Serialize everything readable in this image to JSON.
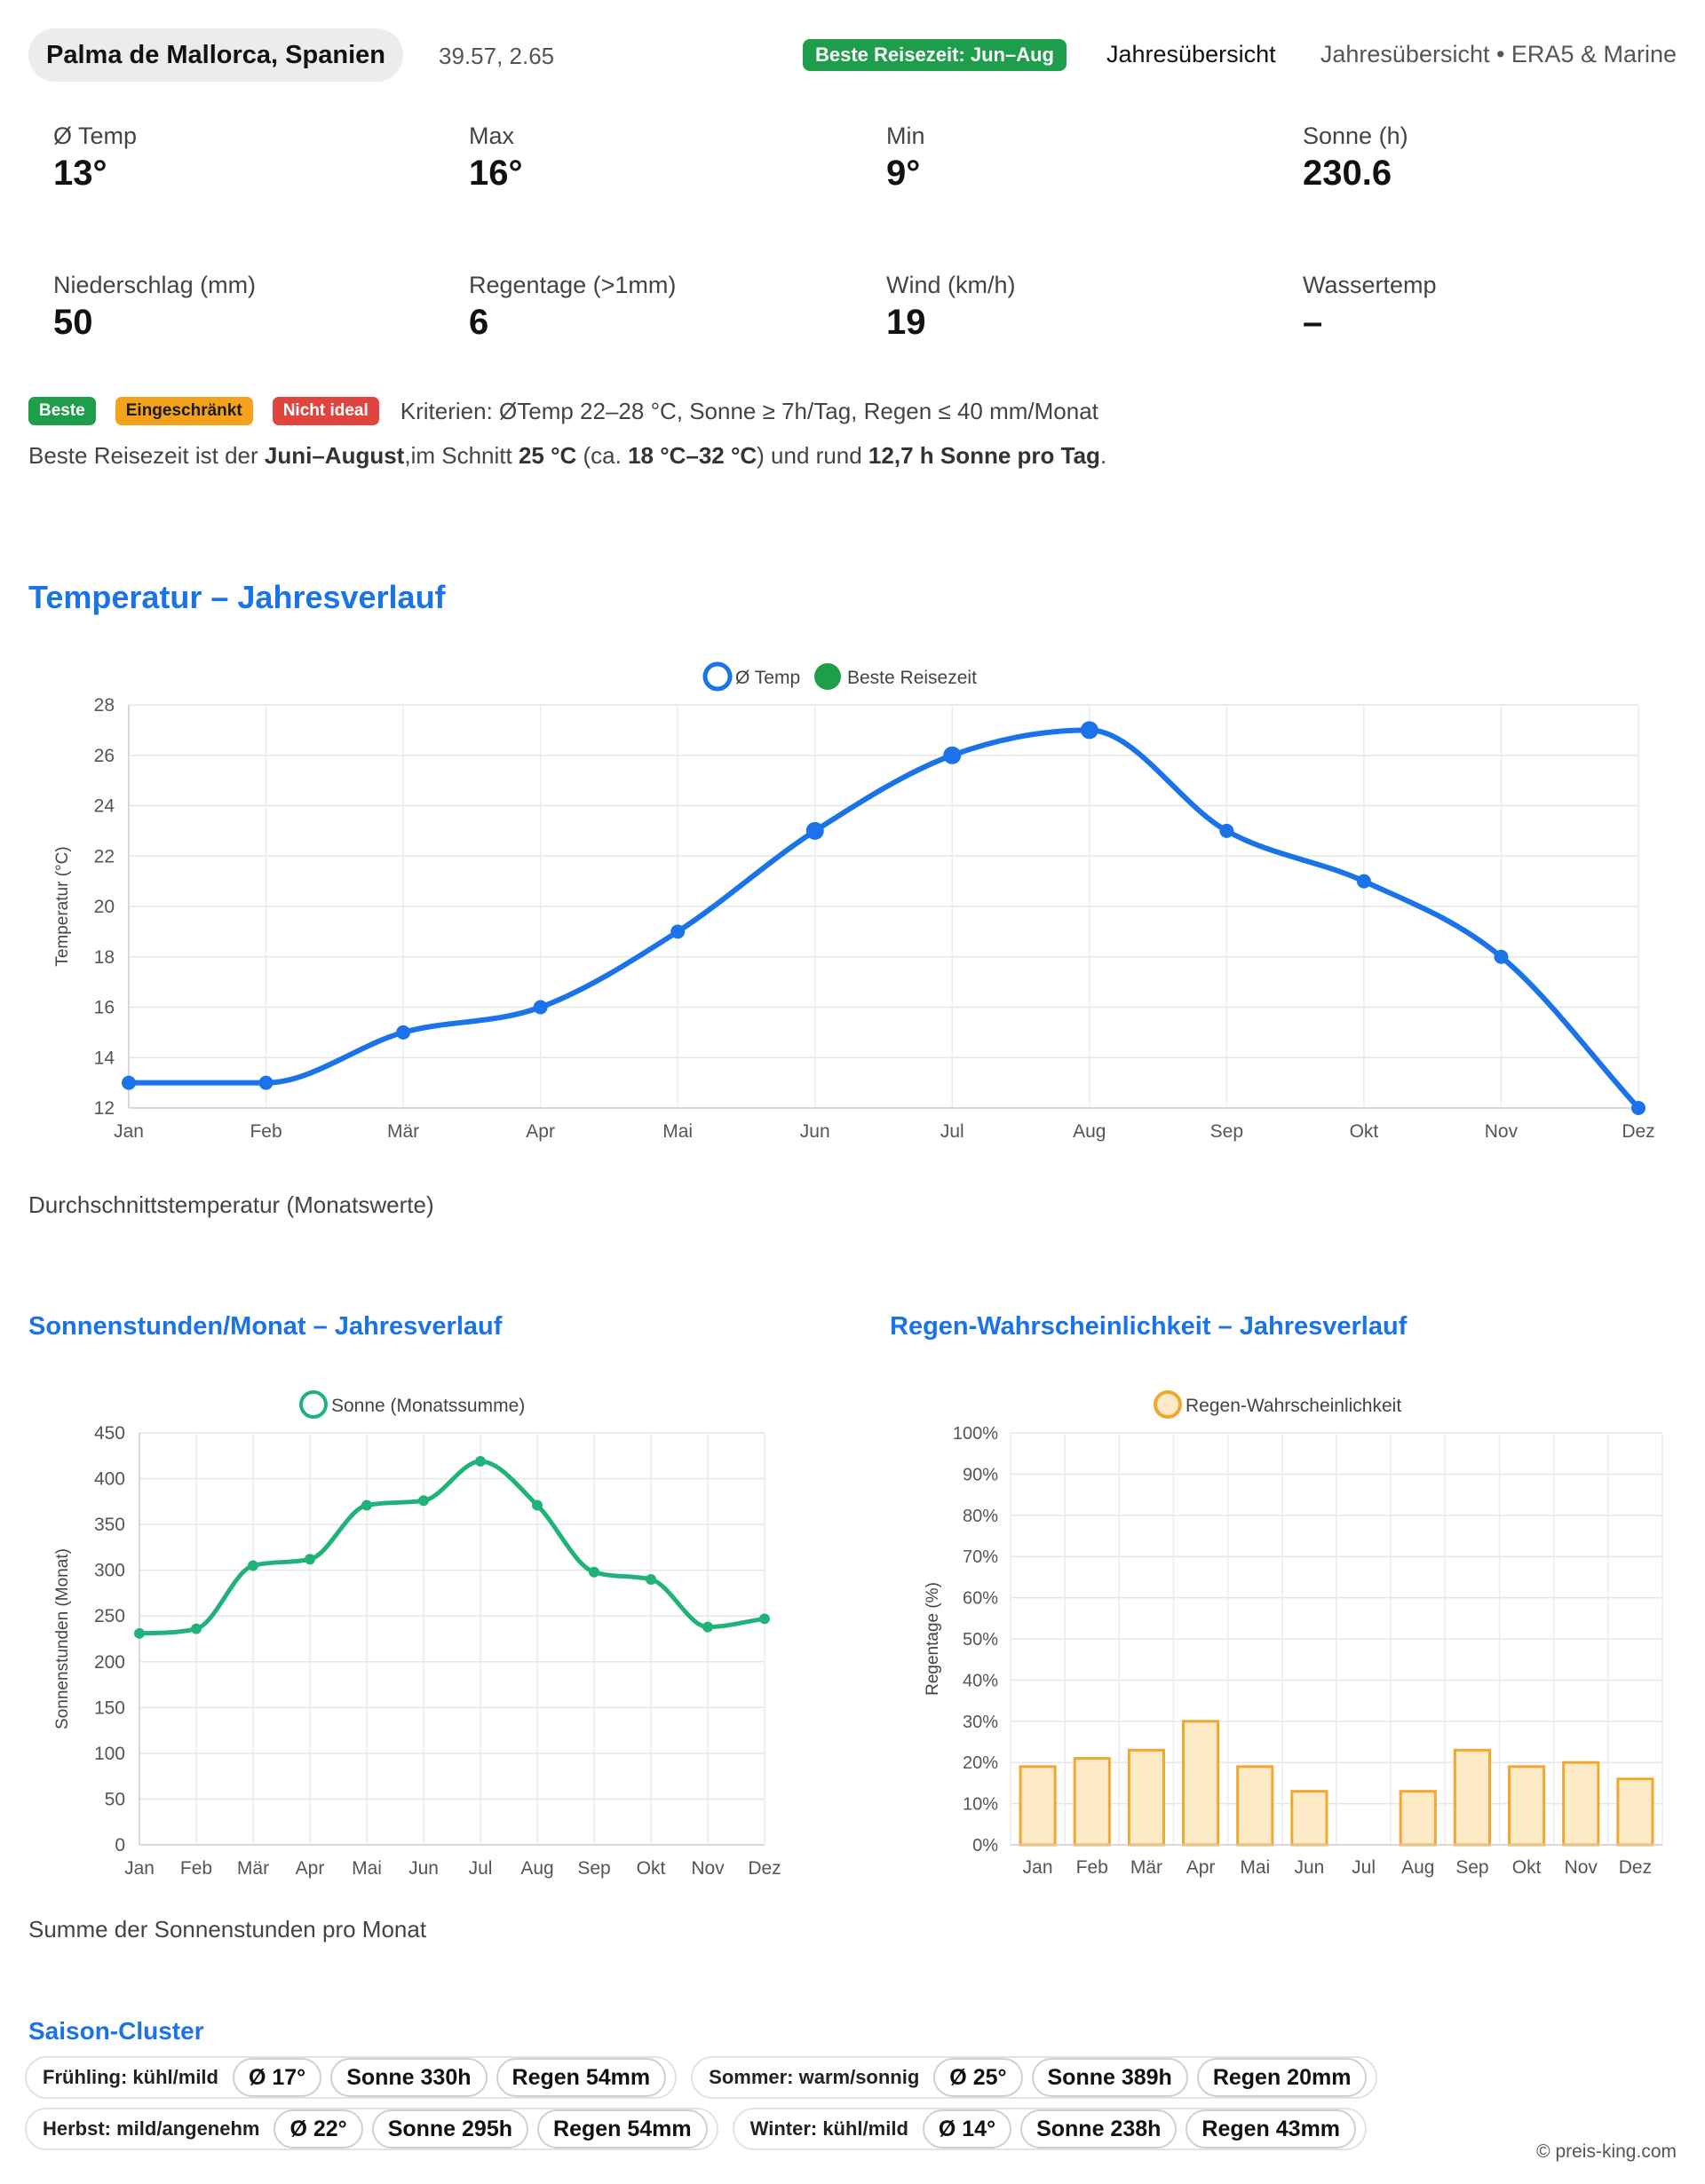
{
  "header": {
    "place": "Palma de Mallorca, Spanien",
    "coords": "39.57, 2.65",
    "best_badge": "Beste Reisezeit: Jun–Aug",
    "overview_link": "Jahresübersicht",
    "source": "Jahresübersicht • ERA5 & Marine"
  },
  "kpis": [
    {
      "label": "Ø Temp",
      "value": "13°"
    },
    {
      "label": "Max",
      "value": "16°"
    },
    {
      "label": "Min",
      "value": "9°"
    },
    {
      "label": "Sonne (h)",
      "value": "230.6"
    },
    {
      "label": "Niederschlag (mm)",
      "value": "50"
    },
    {
      "label": "Regentage (>1mm)",
      "value": "6"
    },
    {
      "label": "Wind (km/h)",
      "value": "19"
    },
    {
      "label": "Wassertemp",
      "value": "–"
    }
  ],
  "legend": {
    "best": "Beste",
    "limited": "Eingeschränkt",
    "not_ideal": "Nicht ideal",
    "criteria": "Kriterien: ØTemp 22–28 °C, Sonne ≥ 7h/Tag, Regen ≤ 40 mm/Monat"
  },
  "summary": {
    "p1": "Beste Reisezeit ist der ",
    "months": "Juni–August",
    "p2": ",im Schnitt ",
    "avg": "25 °C",
    "p3": " (ca. ",
    "range": "18 °C–32 °C",
    "p4": ") und rund ",
    "sun": "12,7 h Sonne pro Tag",
    "p5": "."
  },
  "sections": {
    "temp_title": "Temperatur – Jahresverlauf",
    "temp_caption": "Durchschnittstemperatur (Monatswerte)",
    "sun_title": "Sonnenstunden/Monat – Jahresverlauf",
    "sun_caption": "Summe der Sonnenstunden pro Monat",
    "rain_title": "Regen-Wahrscheinlichkeit – Jahresverlauf",
    "cluster_title": "Saison-Cluster"
  },
  "chart_data": [
    {
      "type": "line",
      "title": "Temperatur – Jahresverlauf",
      "categories": [
        "Jan",
        "Feb",
        "Mär",
        "Apr",
        "Mai",
        "Jun",
        "Jul",
        "Aug",
        "Sep",
        "Okt",
        "Nov",
        "Dez"
      ],
      "series": [
        {
          "name": "Ø Temp",
          "values": [
            13,
            13,
            15,
            16,
            19,
            23,
            26,
            27,
            23,
            21,
            18,
            12
          ]
        }
      ],
      "legend": [
        "Ø Temp",
        "Beste Reisezeit"
      ],
      "highlight_indices": [
        5,
        6,
        7
      ],
      "ylabel": "Temperatur (°C)",
      "ylim": [
        12,
        28
      ],
      "yticks": [
        12,
        14,
        16,
        18,
        20,
        22,
        24,
        26,
        28
      ],
      "colors": {
        "line": "#1a73e8",
        "best": "#1e9d4b"
      }
    },
    {
      "type": "line",
      "title": "Sonnenstunden/Monat – Jahresverlauf",
      "categories": [
        "Jan",
        "Feb",
        "Mär",
        "Apr",
        "Mai",
        "Jun",
        "Jul",
        "Aug",
        "Sep",
        "Okt",
        "Nov",
        "Dez"
      ],
      "series": [
        {
          "name": "Sonne (Monatssumme)",
          "values": [
            231,
            236,
            305,
            312,
            371,
            376,
            419,
            371,
            298,
            290,
            238,
            247
          ]
        }
      ],
      "ylabel": "Sonnenstunden (Monat)",
      "ylim": [
        0,
        450
      ],
      "yticks": [
        0,
        50,
        100,
        150,
        200,
        250,
        300,
        350,
        400,
        450
      ],
      "colors": {
        "line": "#1fb37a"
      }
    },
    {
      "type": "bar",
      "title": "Regen-Wahrscheinlichkeit – Jahresverlauf",
      "categories": [
        "Jan",
        "Feb",
        "Mär",
        "Apr",
        "Mai",
        "Jun",
        "Jul",
        "Aug",
        "Sep",
        "Okt",
        "Nov",
        "Dez"
      ],
      "series": [
        {
          "name": "Regen-Wahrscheinlichkeit",
          "values": [
            19,
            21,
            23,
            30,
            19,
            13,
            0,
            13,
            23,
            19,
            20,
            16
          ]
        }
      ],
      "ylabel": "Regentage (%)",
      "ylim": [
        0,
        100
      ],
      "yticks": [
        "0%",
        "10%",
        "20%",
        "30%",
        "40%",
        "50%",
        "60%",
        "70%",
        "80%",
        "90%",
        "100%"
      ],
      "colors": {
        "stroke": "#f0a830",
        "fill": "#fdebc8"
      }
    }
  ],
  "clusters": [
    {
      "name": "Frühling: kühl/mild",
      "temp": "Ø 17°",
      "sun": "Sonne 330h",
      "rain": "Regen 54mm"
    },
    {
      "name": "Sommer: warm/sonnig",
      "temp": "Ø 25°",
      "sun": "Sonne 389h",
      "rain": "Regen 20mm"
    },
    {
      "name": "Herbst: mild/angenehm",
      "temp": "Ø 22°",
      "sun": "Sonne 295h",
      "rain": "Regen 54mm"
    },
    {
      "name": "Winter: kühl/mild",
      "temp": "Ø 14°",
      "sun": "Sonne 238h",
      "rain": "Regen 43mm"
    }
  ],
  "copyright": "© preis-king.com"
}
